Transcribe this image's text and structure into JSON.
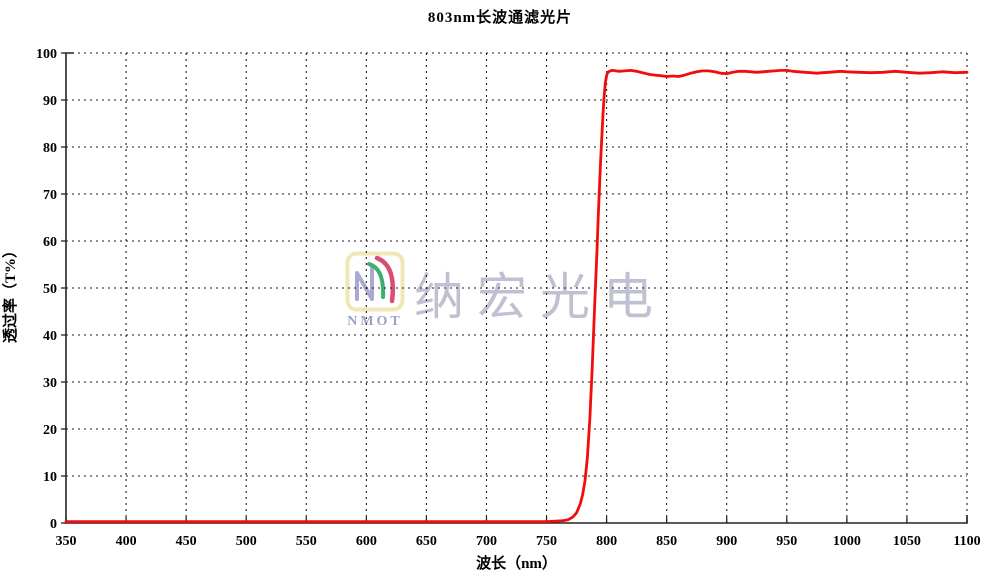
{
  "page": {
    "background": "#ffffff"
  },
  "watermark": {
    "text": "纳宏光电",
    "logo_text": "NMOT",
    "colors": {
      "text": "#babacf",
      "logo_border": "#f1e7b6",
      "logo_n": "#a9a9d2",
      "logo_arc_green": "#3fae6d",
      "logo_arc_red": "#d94f72",
      "logo_label": "#9f9fca"
    }
  },
  "chart_data": {
    "type": "line",
    "title": "803nm长波通滤光片",
    "xlabel": "波长（nm）",
    "ylabel": "透过率（T%）",
    "xlim": [
      350,
      1100
    ],
    "ylim": [
      0,
      100
    ],
    "x_ticks": [
      350,
      400,
      450,
      500,
      550,
      600,
      650,
      700,
      750,
      800,
      850,
      900,
      950,
      1000,
      1050,
      1100
    ],
    "y_ticks": [
      0,
      10,
      20,
      30,
      40,
      50,
      60,
      70,
      80,
      90,
      100
    ],
    "grid": "dashed-both-axes",
    "legend": "none",
    "line_color": "#f20d0d",
    "series": [
      {
        "name": "透过率",
        "points": [
          [
            350,
            0.3
          ],
          [
            380,
            0.3
          ],
          [
            410,
            0.3
          ],
          [
            440,
            0.3
          ],
          [
            470,
            0.3
          ],
          [
            500,
            0.3
          ],
          [
            530,
            0.3
          ],
          [
            560,
            0.3
          ],
          [
            590,
            0.3
          ],
          [
            620,
            0.3
          ],
          [
            650,
            0.3
          ],
          [
            680,
            0.3
          ],
          [
            710,
            0.3
          ],
          [
            730,
            0.3
          ],
          [
            750,
            0.3
          ],
          [
            758,
            0.4
          ],
          [
            764,
            0.5
          ],
          [
            768,
            0.7
          ],
          [
            772,
            1.3
          ],
          [
            775,
            2.2
          ],
          [
            778,
            4
          ],
          [
            780,
            6
          ],
          [
            782,
            9
          ],
          [
            784,
            14
          ],
          [
            786,
            22
          ],
          [
            788,
            33
          ],
          [
            790,
            46
          ],
          [
            791,
            52
          ],
          [
            792,
            58
          ],
          [
            793,
            65
          ],
          [
            794,
            71
          ],
          [
            795,
            77
          ],
          [
            796,
            82
          ],
          [
            797,
            87
          ],
          [
            798,
            91
          ],
          [
            799,
            93.8
          ],
          [
            800,
            95.2
          ],
          [
            801,
            95.9
          ],
          [
            803,
            96.2
          ],
          [
            805,
            96.3
          ],
          [
            810,
            96.1
          ],
          [
            815,
            96.2
          ],
          [
            820,
            96.3
          ],
          [
            825,
            96.1
          ],
          [
            830,
            95.8
          ],
          [
            835,
            95.5
          ],
          [
            840,
            95.3
          ],
          [
            845,
            95.2
          ],
          [
            850,
            95.0
          ],
          [
            855,
            95.1
          ],
          [
            860,
            95.0
          ],
          [
            865,
            95.3
          ],
          [
            870,
            95.7
          ],
          [
            875,
            96.0
          ],
          [
            880,
            96.2
          ],
          [
            885,
            96.2
          ],
          [
            890,
            96.0
          ],
          [
            895,
            95.7
          ],
          [
            900,
            95.6
          ],
          [
            905,
            95.9
          ],
          [
            910,
            96.1
          ],
          [
            915,
            96.1
          ],
          [
            920,
            96.0
          ],
          [
            925,
            95.9
          ],
          [
            930,
            96.0
          ],
          [
            935,
            96.1
          ],
          [
            940,
            96.2
          ],
          [
            945,
            96.3
          ],
          [
            950,
            96.3
          ],
          [
            955,
            96.1
          ],
          [
            960,
            96.0
          ],
          [
            965,
            95.9
          ],
          [
            970,
            95.8
          ],
          [
            975,
            95.7
          ],
          [
            980,
            95.8
          ],
          [
            985,
            95.9
          ],
          [
            990,
            96.0
          ],
          [
            995,
            96.1
          ],
          [
            1000,
            96.0
          ],
          [
            1010,
            95.9
          ],
          [
            1020,
            95.8
          ],
          [
            1030,
            95.9
          ],
          [
            1040,
            96.1
          ],
          [
            1050,
            95.9
          ],
          [
            1060,
            95.7
          ],
          [
            1070,
            95.8
          ],
          [
            1080,
            96.0
          ],
          [
            1090,
            95.8
          ],
          [
            1100,
            95.9
          ]
        ]
      }
    ]
  }
}
